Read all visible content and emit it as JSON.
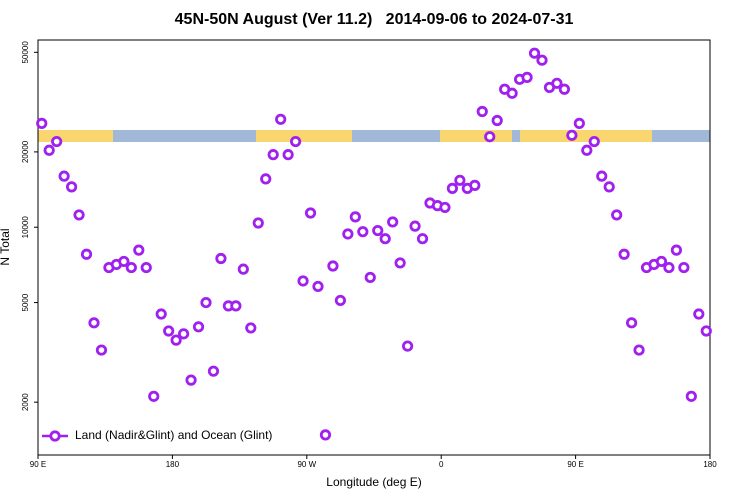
{
  "chart_data": {
    "type": "scatter",
    "title": "45N-50N August (Ver 11.2)   2014-09-06 to 2024-07-31",
    "xlabel": "Longitude (deg E)",
    "ylabel": "N Total",
    "x": [
      92.5,
      97.5,
      102.5,
      107.5,
      112.5,
      117.5,
      122.5,
      127.5,
      132.5,
      137.5,
      142.5,
      147.5,
      152.5,
      157.5,
      162.5,
      167.5,
      172.5,
      177.5,
      182.5,
      187.5,
      192.5,
      197.5,
      202.5,
      207.5,
      212.5,
      217.5,
      222.5,
      227.5,
      232.5,
      237.5,
      242.5,
      247.5,
      252.5,
      257.5,
      262.5,
      267.5,
      272.5,
      277.5,
      282.5,
      287.5,
      292.5,
      297.5,
      302.5,
      307.5,
      312.5,
      317.5,
      322.5,
      327.5,
      332.5,
      337.5,
      342.5,
      347.5,
      352.5,
      357.5,
      362.5,
      367.5,
      372.5,
      377.5,
      382.5,
      387.5,
      392.5,
      397.5,
      402.5,
      407.5,
      412.5,
      417.5,
      422.5,
      427.5,
      432.5,
      437.5,
      442.5,
      447.5,
      452.5,
      457.5,
      462.5,
      467.5,
      472.5,
      477.5,
      482.5,
      487.5,
      492.5,
      497.5,
      502.5,
      507.5,
      512.5,
      517.5,
      522.5,
      527.5,
      532.5,
      537.5
    ],
    "series": [
      {
        "name": "Land (Nadir&Glint) and Ocean (Glint)",
        "color": "#a020f0",
        "values": [
          26000,
          20300,
          22000,
          16000,
          14500,
          11200,
          7800,
          4150,
          3230,
          6900,
          7100,
          7300,
          6900,
          8100,
          6900,
          2110,
          4500,
          3850,
          3540,
          3750,
          2450,
          4000,
          5000,
          2660,
          7500,
          4850,
          4850,
          6800,
          3960,
          10400,
          15600,
          19500,
          27000,
          19500,
          22000,
          6100,
          11400,
          5800,
          1480,
          7000,
          5100,
          9400,
          11000,
          9600,
          6300,
          9700,
          9000,
          10500,
          7200,
          3350,
          10100,
          9000,
          12500,
          12200,
          12000,
          14300,
          15400,
          14300,
          14700,
          29000,
          23000,
          26700,
          35600,
          34300,
          39000,
          39700,
          49600,
          46500,
          36200,
          37600,
          35600,
          23300,
          26000,
          20300,
          22000,
          16000,
          14500,
          11200,
          7800,
          4150,
          3230,
          6900,
          7100,
          7300,
          6900,
          8100,
          6900,
          2110,
          4500,
          3850
        ]
      }
    ],
    "xlim": [
      90,
      540
    ],
    "xticks": [
      {
        "value": 90,
        "label": "90 E"
      },
      180,
      {
        "value": 270,
        "label": "90 W"
      },
      {
        "value": 360,
        "label": "0"
      },
      {
        "value": 450,
        "label": "90 E"
      },
      {
        "value": 540,
        "label": "180"
      }
    ],
    "ylim": [
      1230,
      56000
    ],
    "yticks": [
      2000,
      5000,
      10000,
      20000,
      50000
    ],
    "ylog": true,
    "legend": "lower left"
  }
}
